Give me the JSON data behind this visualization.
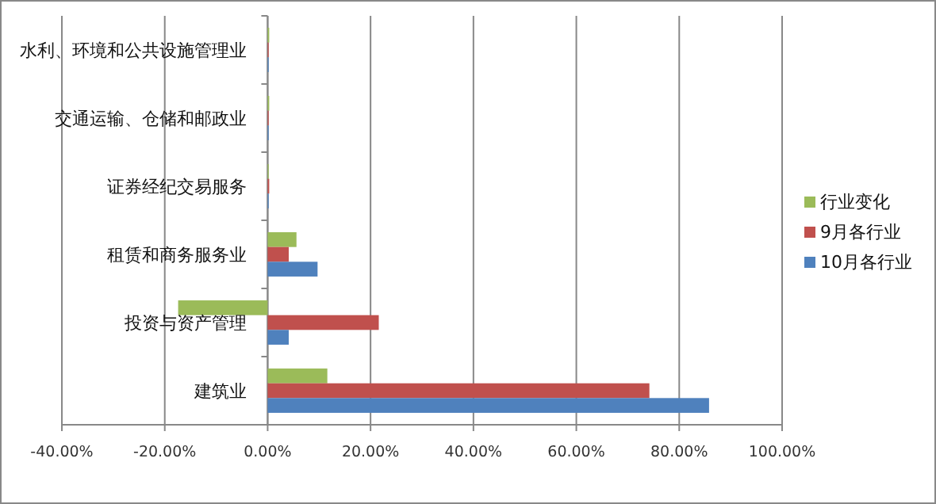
{
  "chart_data": {
    "type": "bar",
    "orientation": "horizontal",
    "categories": [
      "水利、环境和公共设施管理业",
      "交通运输、仓储和邮政业",
      "证券经纪交易服务",
      "租赁和商务服务业",
      "投资与资产管理",
      "建筑业"
    ],
    "series": [
      {
        "name": "行业变化",
        "color": "#9bbb59",
        "values": [
          0.3,
          0.3,
          0.2,
          5.6,
          -17.4,
          11.6
        ]
      },
      {
        "name": "9月各行业",
        "color": "#c0504d",
        "values": [
          0.2,
          0.2,
          0.3,
          4.1,
          21.6,
          74.2
        ]
      },
      {
        "name": "10月各行业",
        "color": "#4f81bd",
        "values": [
          0.2,
          0.2,
          0.2,
          9.7,
          4.1,
          85.8
        ]
      }
    ],
    "xlim": [
      -40,
      100
    ],
    "xticks": [
      {
        "value": -40,
        "label": "-40.00%"
      },
      {
        "value": -20,
        "label": "-20.00%"
      },
      {
        "value": 0,
        "label": "0.00%"
      },
      {
        "value": 20,
        "label": "20.00%"
      },
      {
        "value": 40,
        "label": "40.00%"
      },
      {
        "value": 60,
        "label": "60.00%"
      },
      {
        "value": 80,
        "label": "80.00%"
      },
      {
        "value": 100,
        "label": "100.00%"
      }
    ],
    "grid": "x",
    "legend": "right"
  }
}
